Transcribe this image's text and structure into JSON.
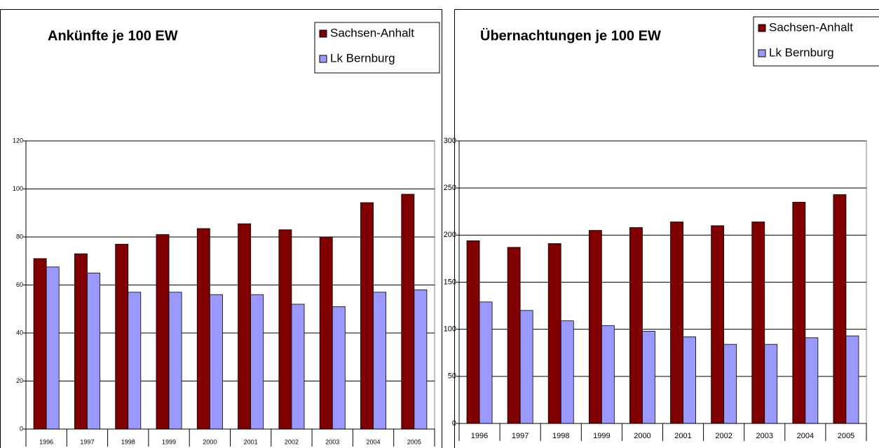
{
  "chart_data": [
    {
      "type": "bar",
      "title": "Ankünfte je 100 EW",
      "categories": [
        "1996",
        "1997",
        "1998",
        "1999",
        "2000",
        "2001",
        "2002",
        "2003",
        "2004",
        "2005"
      ],
      "series": [
        {
          "name": "Sachsen-Anhalt",
          "color": "#800000",
          "values": [
            71,
            73,
            77,
            81,
            83.5,
            85.5,
            83,
            80,
            94.3,
            97.8
          ]
        },
        {
          "name": "Lk Bernburg",
          "color": "#9999ff",
          "values": [
            67.5,
            65,
            57,
            57,
            56,
            56,
            52,
            51,
            57,
            58
          ]
        }
      ],
      "ylim": [
        0,
        120
      ],
      "yticks": [
        0,
        20,
        40,
        60,
        80,
        100,
        120
      ],
      "grid": true,
      "legend": "top-right"
    },
    {
      "type": "bar",
      "title": "Übernachtungen je 100 EW",
      "categories": [
        "1996",
        "1997",
        "1998",
        "1999",
        "2000",
        "2001",
        "2002",
        "2003",
        "2004",
        "2005"
      ],
      "series": [
        {
          "name": "Sachsen-Anhalt",
          "color": "#800000",
          "values": [
            194,
            187,
            191,
            205,
            208,
            214,
            210,
            214,
            235,
            243
          ]
        },
        {
          "name": "Lk Bernburg",
          "color": "#9999ff",
          "values": [
            129,
            120,
            109,
            104,
            98,
            92,
            84,
            84,
            91,
            93
          ]
        }
      ],
      "ylim": [
        0,
        300
      ],
      "yticks": [
        0,
        50,
        100,
        150,
        200,
        250,
        300
      ],
      "grid": true,
      "legend": "top-right"
    }
  ]
}
